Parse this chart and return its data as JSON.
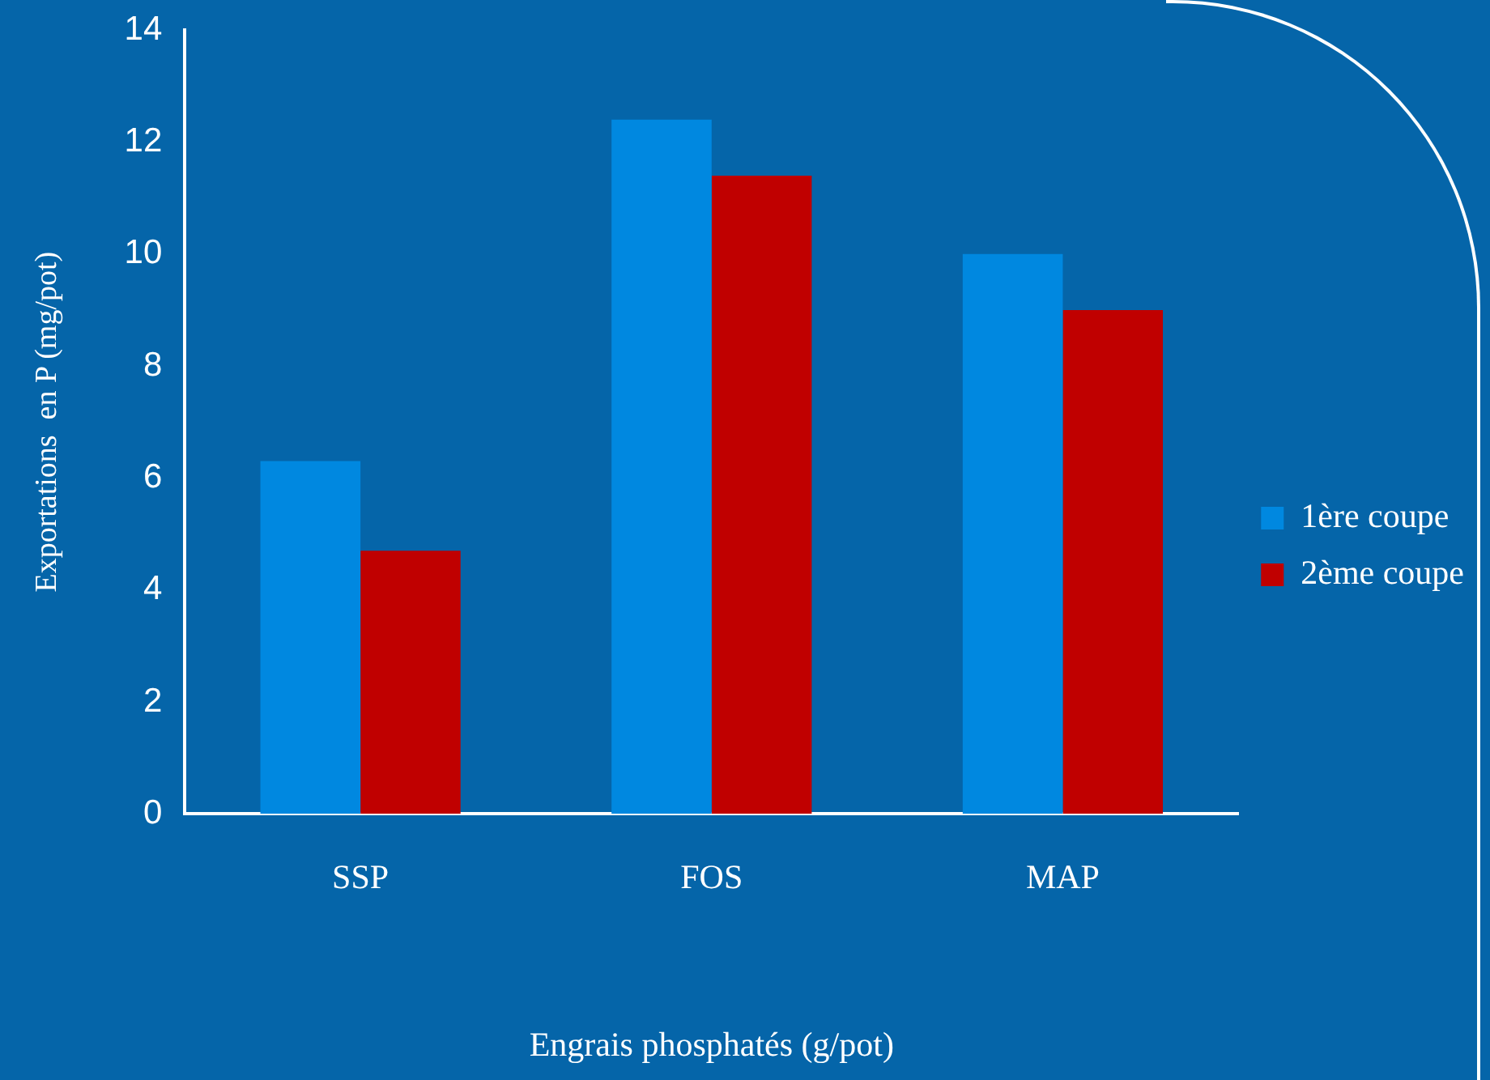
{
  "chart_data": {
    "type": "bar",
    "xlabel": "Engrais phosphatés (g/pot)",
    "ylabel": "Exportations  en P (mg/pot)",
    "categories": [
      "SSP",
      "FOS",
      "MAP"
    ],
    "series": [
      {
        "name": "1ère coupe",
        "color": "#0088e0",
        "values": [
          6.3,
          12.4,
          10.0
        ]
      },
      {
        "name": "2ème coupe",
        "color": "#c00000",
        "values": [
          4.7,
          11.4,
          9.0
        ]
      }
    ],
    "ylim": [
      0,
      14
    ],
    "yticks": [
      0,
      2,
      4,
      6,
      8,
      10,
      12,
      14
    ],
    "grid": false,
    "legend": "right"
  }
}
